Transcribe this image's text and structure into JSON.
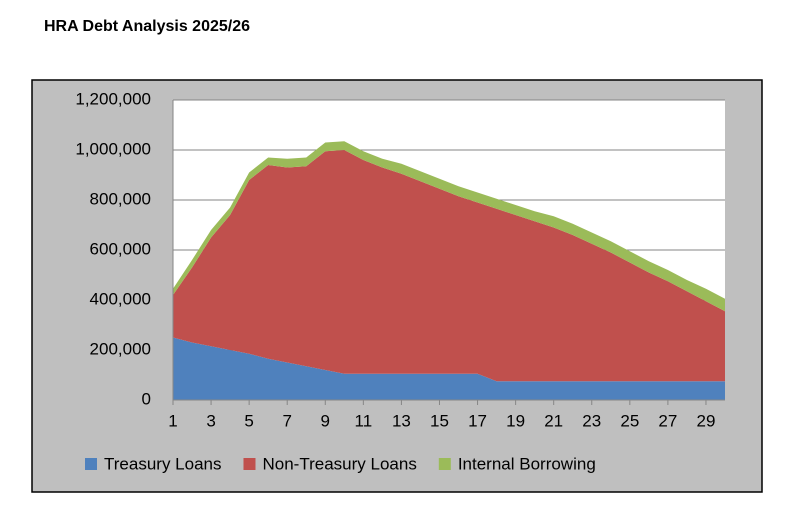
{
  "chart_data": {
    "type": "stacked_area",
    "title": "HRA Debt Analysis 2025/26",
    "x": [
      1,
      2,
      3,
      4,
      5,
      6,
      7,
      8,
      9,
      10,
      11,
      12,
      13,
      14,
      15,
      16,
      17,
      18,
      19,
      20,
      21,
      22,
      23,
      24,
      25,
      26,
      27,
      28,
      29,
      30
    ],
    "xlim": [
      1,
      30
    ],
    "xticks": [
      1,
      3,
      5,
      7,
      9,
      11,
      13,
      15,
      17,
      19,
      21,
      23,
      25,
      27,
      29
    ],
    "ylim": [
      0,
      1200000
    ],
    "yticks": [
      0,
      {
        "value": 200000,
        "label": "200,000"
      },
      {
        "value": 400000,
        "label": "400,000"
      },
      {
        "value": 600000,
        "label": "600,000"
      },
      {
        "value": 800000,
        "label": "800,000"
      },
      {
        "value": 1000000,
        "label": "1,000,000"
      },
      {
        "value": 1200000,
        "label": "1,200,000"
      }
    ],
    "grid": true,
    "legend": "bottom",
    "series": [
      {
        "name": "Treasury Loans",
        "color": "#4f81bd",
        "values": [
          250000,
          230000,
          215000,
          200000,
          185000,
          165000,
          150000,
          135000,
          120000,
          105000,
          105000,
          105000,
          105000,
          105000,
          105000,
          105000,
          105000,
          75000,
          75000,
          75000,
          75000,
          75000,
          75000,
          75000,
          75000,
          75000,
          75000,
          75000,
          75000,
          75000
        ]
      },
      {
        "name": "Non-Treasury Loans",
        "color": "#c0504d",
        "values": [
          170000,
          300000,
          435000,
          540000,
          695000,
          775000,
          780000,
          800000,
          875000,
          895000,
          855000,
          825000,
          800000,
          770000,
          740000,
          710000,
          685000,
          690000,
          665000,
          640000,
          615000,
          585000,
          550000,
          515000,
          475000,
          435000,
          400000,
          360000,
          320000,
          280000
        ]
      },
      {
        "name": "Internal Borrowing",
        "color": "#9bbb59",
        "values": [
          25000,
          30000,
          30000,
          30000,
          30000,
          30000,
          35000,
          35000,
          35000,
          35000,
          35000,
          35000,
          40000,
          40000,
          40000,
          40000,
          40000,
          40000,
          40000,
          40000,
          45000,
          45000,
          45000,
          45000,
          45000,
          45000,
          45000,
          45000,
          50000,
          50000
        ]
      }
    ]
  }
}
